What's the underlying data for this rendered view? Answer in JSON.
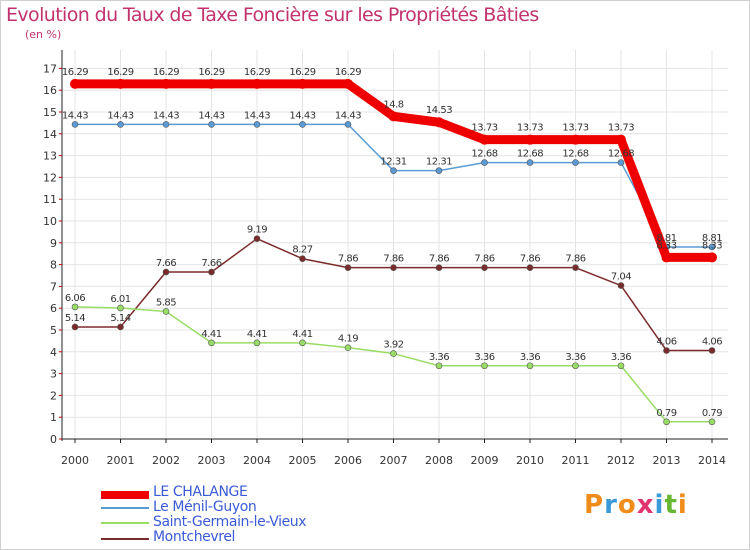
{
  "chart_data": {
    "type": "line",
    "title": "Evolution du Taux de Taxe Foncière sur les Propriétés Bâties",
    "subtitle": "(en %)",
    "categories": [
      "2000",
      "2001",
      "2002",
      "2003",
      "2004",
      "2005",
      "2006",
      "2007",
      "2008",
      "2009",
      "2010",
      "2011",
      "2012",
      "2013",
      "2014"
    ],
    "yticks": [
      "0",
      "1",
      "2",
      "3",
      "4",
      "5",
      "6",
      "7",
      "8",
      "9",
      "10",
      "11",
      "12",
      "13",
      "14",
      "15",
      "16",
      "17"
    ],
    "ylim": [
      0,
      17
    ],
    "series": [
      {
        "name": "LE CHALANGE",
        "color": "#ee0000",
        "values": [
          16.29,
          16.29,
          16.29,
          16.29,
          16.29,
          16.29,
          16.29,
          14.8,
          14.53,
          13.73,
          13.73,
          13.73,
          13.73,
          8.33,
          8.33
        ],
        "labels": [
          "16.29",
          "16.29",
          "16.29",
          "16.29",
          "16.29",
          "16.29",
          "16.29",
          "14.8",
          "14.53",
          "13.73",
          "13.73",
          "13.73",
          "13.73",
          "8.33",
          "8.33"
        ]
      },
      {
        "name": "Le Ménil-Guyon",
        "color": "#5b9bd5",
        "values": [
          14.43,
          14.43,
          14.43,
          14.43,
          14.43,
          14.43,
          14.43,
          12.31,
          12.31,
          12.68,
          12.68,
          12.68,
          12.68,
          8.81,
          8.81
        ],
        "labels": [
          "14.43",
          "14.43",
          "14.43",
          "14.43",
          "14.43",
          "14.43",
          "14.43",
          "12.31",
          "12.31",
          "12.68",
          "12.68",
          "12.68",
          "12.68",
          "8.81",
          "8.81"
        ]
      },
      {
        "name": "Saint-Germain-le-Vieux",
        "color": "#99dd66",
        "values": [
          6.06,
          6.01,
          5.85,
          4.41,
          4.41,
          4.41,
          4.19,
          3.92,
          3.36,
          3.36,
          3.36,
          3.36,
          3.36,
          0.79,
          0.79
        ],
        "labels": [
          "6.06",
          "6.01",
          "5.85",
          "4.41",
          "4.41",
          "4.41",
          "4.19",
          "3.92",
          "3.36",
          "3.36",
          "3.36",
          "3.36",
          "3.36",
          "0.79",
          "0.79"
        ]
      },
      {
        "name": "Montchevrel",
        "color": "#7b2b2b",
        "values": [
          5.14,
          5.14,
          7.66,
          7.66,
          9.19,
          8.27,
          7.86,
          7.86,
          7.86,
          7.86,
          7.86,
          7.86,
          7.04,
          4.06,
          4.06
        ],
        "labels": [
          "5.14",
          "5.14",
          "7.66",
          "7.66",
          "9.19",
          "8.27",
          "7.86",
          "7.86",
          "7.86",
          "7.86",
          "7.86",
          "7.86",
          "7.04",
          "4.06",
          "4.06"
        ]
      }
    ],
    "legend": [
      "LE CHALANGE",
      "Le Ménil-Guyon",
      "Saint-Germain-le-Vieux",
      "Montchevrel"
    ],
    "grid": true
  },
  "logo": {
    "letters": [
      "P",
      "r",
      "o",
      "x",
      "i",
      "t",
      "i"
    ]
  }
}
